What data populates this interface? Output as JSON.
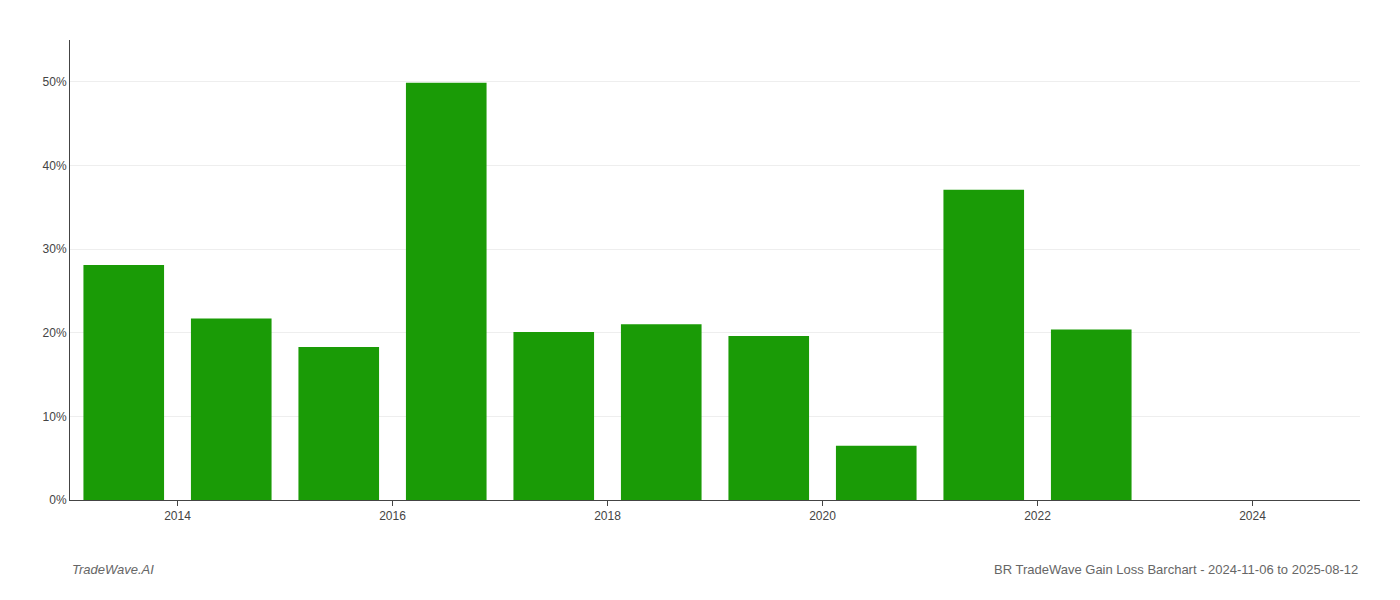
{
  "chart_data": {
    "type": "bar",
    "title": "BR TradeWave Gain Loss Barchart - 2024-11-06 to 2025-08-12",
    "annotations": [
      "TradeWave.AI"
    ],
    "x": [
      2013.5,
      2014.5,
      2015.5,
      2016.5,
      2017.5,
      2018.5,
      2019.5,
      2020.5,
      2021.5,
      2022.5,
      2023.5
    ],
    "values": [
      0.281,
      0.217,
      0.183,
      0.499,
      0.201,
      0.21,
      0.196,
      0.065,
      0.371,
      0.204,
      0.0
    ],
    "color": "#1a9b06",
    "xlim": [
      2013.0,
      2025.0
    ],
    "xticks": [
      2014,
      2016,
      2018,
      2020,
      2022,
      2024
    ],
    "ylim": [
      0,
      0.55
    ],
    "yticks": [
      {
        "value": 0.0,
        "label": "0%"
      },
      {
        "value": 0.1,
        "label": "10%"
      },
      {
        "value": 0.2,
        "label": "20%"
      },
      {
        "value": 0.3,
        "label": "30%"
      },
      {
        "value": 0.4,
        "label": "40%"
      },
      {
        "value": 0.5,
        "label": "50%"
      }
    ],
    "grid": true
  }
}
